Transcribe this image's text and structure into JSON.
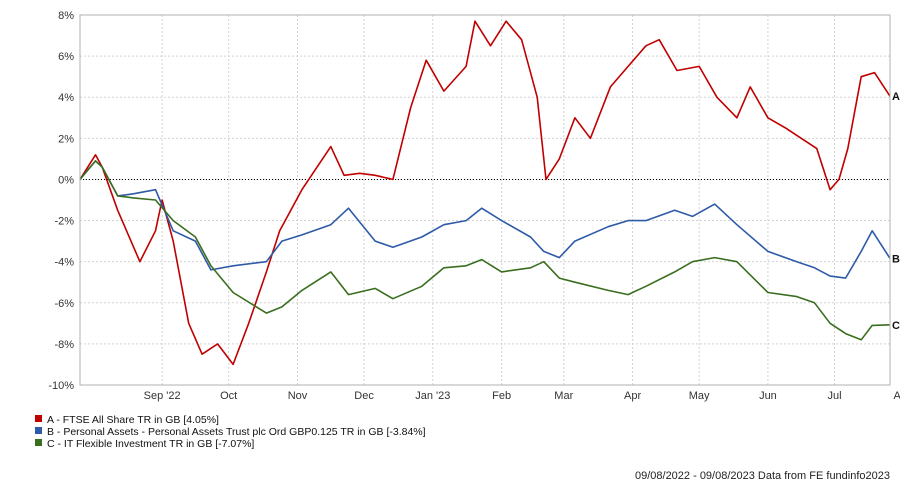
{
  "chart_data": {
    "type": "line",
    "title": "",
    "xlabel": "",
    "ylabel": "",
    "ylim": [
      -10,
      8
    ],
    "y_ticks": [
      "8%",
      "6%",
      "4%",
      "2%",
      "0%",
      "-2%",
      "-4%",
      "-6%",
      "-8%",
      "-10%"
    ],
    "y_tick_values": [
      8,
      6,
      4,
      2,
      0,
      -2,
      -4,
      -6,
      -8,
      -10
    ],
    "x_ticks": [
      "Sep '22",
      "Oct",
      "Nov",
      "Dec",
      "Jan '23",
      "Feb",
      "Mar",
      "Apr",
      "May",
      "Jun",
      "Jul",
      "Aug"
    ],
    "x_tick_dates": [
      "2022-09-15",
      "2022-10-15",
      "2022-11-15",
      "2022-12-15",
      "2023-01-15",
      "2023-02-15",
      "2023-03-15",
      "2023-04-15",
      "2023-05-15",
      "2023-06-15",
      "2023-07-15",
      "2023-08-15"
    ],
    "xlim": [
      "2022-08-09",
      "2023-08-09"
    ],
    "grid": true,
    "zero_line": "dotted",
    "legend_position": "bottom-left",
    "series": [
      {
        "name": "A - FTSE All Share TR in GB [4.05%]",
        "end_label": "A",
        "color": "#c00000",
        "x": [
          "2022-08-09",
          "2022-08-16",
          "2022-08-19",
          "2022-08-26",
          "2022-09-05",
          "2022-09-12",
          "2022-09-15",
          "2022-09-20",
          "2022-09-27",
          "2022-10-03",
          "2022-10-10",
          "2022-10-17",
          "2022-10-24",
          "2022-11-01",
          "2022-11-07",
          "2022-11-17",
          "2022-11-30",
          "2022-12-06",
          "2022-12-13",
          "2022-12-20",
          "2022-12-28",
          "2023-01-05",
          "2023-01-12",
          "2023-01-20",
          "2023-01-30",
          "2023-02-03",
          "2023-02-10",
          "2023-02-17",
          "2023-02-24",
          "2023-03-03",
          "2023-03-07",
          "2023-03-13",
          "2023-03-20",
          "2023-03-27",
          "2023-04-05",
          "2023-04-13",
          "2023-04-21",
          "2023-04-27",
          "2023-05-05",
          "2023-05-15",
          "2023-05-23",
          "2023-06-01",
          "2023-06-07",
          "2023-06-15",
          "2023-06-23",
          "2023-06-30",
          "2023-07-07",
          "2023-07-13",
          "2023-07-17",
          "2023-07-21",
          "2023-07-27",
          "2023-08-02",
          "2023-08-09"
        ],
        "y": [
          0.0,
          1.2,
          0.6,
          -1.5,
          -4.0,
          -2.5,
          -1.0,
          -3.0,
          -7.0,
          -8.5,
          -8.0,
          -9.0,
          -7.0,
          -4.5,
          -2.5,
          -0.5,
          1.6,
          0.2,
          0.3,
          0.2,
          0.0,
          3.5,
          5.8,
          4.3,
          5.5,
          7.7,
          6.5,
          7.7,
          6.8,
          4.0,
          0.0,
          1.0,
          3.0,
          2.0,
          4.5,
          5.5,
          6.5,
          6.8,
          5.3,
          5.5,
          4.0,
          3.0,
          4.5,
          3.0,
          2.5,
          2.0,
          1.5,
          -0.5,
          0.0,
          1.5,
          5.0,
          5.2,
          4.05
        ]
      },
      {
        "name": "B - Personal Assets - Personal Assets Trust plc Ord GBP0.125 TR in GB [-3.84%]",
        "end_label": "B",
        "color": "#2e5aa8",
        "x": [
          "2022-08-09",
          "2022-08-16",
          "2022-08-19",
          "2022-08-26",
          "2022-09-02",
          "2022-09-12",
          "2022-09-20",
          "2022-09-30",
          "2022-10-07",
          "2022-10-17",
          "2022-11-01",
          "2022-11-08",
          "2022-11-17",
          "2022-11-30",
          "2022-12-08",
          "2022-12-20",
          "2022-12-28",
          "2023-01-10",
          "2023-01-20",
          "2023-01-30",
          "2023-02-06",
          "2023-02-15",
          "2023-02-28",
          "2023-03-06",
          "2023-03-13",
          "2023-03-20",
          "2023-04-04",
          "2023-04-13",
          "2023-04-21",
          "2023-05-04",
          "2023-05-12",
          "2023-05-22",
          "2023-06-01",
          "2023-06-15",
          "2023-06-28",
          "2023-07-06",
          "2023-07-13",
          "2023-07-20",
          "2023-07-27",
          "2023-08-01",
          "2023-08-09"
        ],
        "y": [
          0.0,
          0.9,
          0.6,
          -0.8,
          -0.7,
          -0.5,
          -2.5,
          -3.0,
          -4.4,
          -4.2,
          -4.0,
          -3.0,
          -2.7,
          -2.2,
          -1.4,
          -3.0,
          -3.3,
          -2.8,
          -2.2,
          -2.0,
          -1.4,
          -2.0,
          -2.8,
          -3.5,
          -3.8,
          -3.0,
          -2.3,
          -2.0,
          -2.0,
          -1.5,
          -1.8,
          -1.2,
          -2.2,
          -3.5,
          -4.0,
          -4.3,
          -4.7,
          -4.8,
          -3.5,
          -2.5,
          -3.84
        ]
      },
      {
        "name": "C - IT Flexible Investment TR in GB [-7.07%]",
        "end_label": "C",
        "color": "#3a6e1f",
        "x": [
          "2022-08-09",
          "2022-08-16",
          "2022-08-19",
          "2022-08-26",
          "2022-09-02",
          "2022-09-12",
          "2022-09-20",
          "2022-09-30",
          "2022-10-07",
          "2022-10-17",
          "2022-11-01",
          "2022-11-08",
          "2022-11-17",
          "2022-11-30",
          "2022-12-08",
          "2022-12-20",
          "2022-12-28",
          "2023-01-10",
          "2023-01-20",
          "2023-01-30",
          "2023-02-06",
          "2023-02-15",
          "2023-02-28",
          "2023-03-06",
          "2023-03-13",
          "2023-03-20",
          "2023-04-04",
          "2023-04-13",
          "2023-04-21",
          "2023-05-04",
          "2023-05-12",
          "2023-05-22",
          "2023-06-01",
          "2023-06-15",
          "2023-06-28",
          "2023-07-06",
          "2023-07-13",
          "2023-07-20",
          "2023-07-27",
          "2023-08-01",
          "2023-08-09"
        ],
        "y": [
          0.0,
          0.9,
          0.6,
          -0.8,
          -0.9,
          -1.0,
          -2.0,
          -2.8,
          -4.2,
          -5.5,
          -6.5,
          -6.2,
          -5.4,
          -4.5,
          -5.6,
          -5.3,
          -5.8,
          -5.2,
          -4.3,
          -4.2,
          -3.9,
          -4.5,
          -4.3,
          -4.0,
          -4.8,
          -5.0,
          -5.4,
          -5.6,
          -5.2,
          -4.5,
          -4.0,
          -3.8,
          -4.0,
          -5.5,
          -5.7,
          -6.0,
          -7.0,
          -7.5,
          -7.8,
          -7.1,
          -7.07
        ]
      }
    ]
  },
  "footer": {
    "text": "09/08/2022 - 09/08/2023 Data from FE fundinfo2023"
  }
}
